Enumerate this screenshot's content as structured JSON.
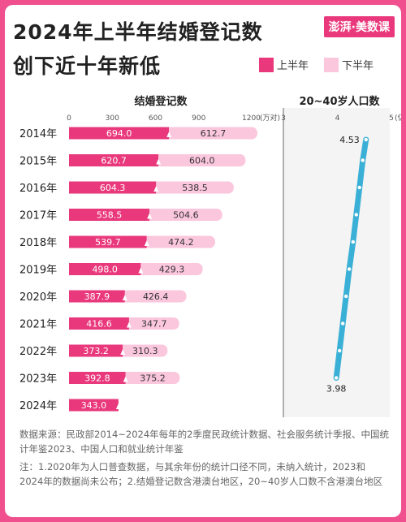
{
  "header": {
    "title_line1": "2024年上半年结婚登记数",
    "title_line2": "创下近十年新低",
    "brand": "澎湃·美数课"
  },
  "colors": {
    "h1": "#e9397c",
    "h2": "#fbc7dd",
    "line": "#3bb0d6",
    "background": "#f0508e"
  },
  "chart_data": [
    {
      "type": "bar",
      "orientation": "horizontal",
      "stacked": true,
      "title": "结婚登记数",
      "unit": "(万对)",
      "categories": [
        "2014年",
        "2015年",
        "2016年",
        "2017年",
        "2018年",
        "2019年",
        "2020年",
        "2021年",
        "2022年",
        "2023年",
        "2024年"
      ],
      "series": [
        {
          "name": "上半年",
          "values": [
            694.0,
            620.7,
            604.3,
            558.5,
            539.7,
            498.0,
            387.9,
            416.6,
            373.2,
            392.8,
            343.0
          ]
        },
        {
          "name": "下半年",
          "values": [
            612.7,
            604.0,
            538.5,
            504.6,
            474.2,
            429.3,
            426.4,
            347.7,
            310.3,
            375.2,
            null
          ]
        }
      ],
      "value_labels": {
        "h1": [
          "694.0",
          "620.7",
          "604.3",
          "558.5",
          "539.7",
          "498.0",
          "387.9",
          "416.6",
          "373.2",
          "392.8",
          "343.0"
        ],
        "h2": [
          "612.7",
          "604.0",
          "538.5",
          "504.6",
          "474.2",
          "429.3",
          "426.4",
          "347.7",
          "310.3",
          "375.2",
          ""
        ]
      },
      "xticks": [
        0,
        300,
        600,
        900,
        1200
      ],
      "xtick_labels": [
        "0",
        "300",
        "600",
        "900",
        "1200"
      ],
      "xlim": [
        0,
        1200
      ],
      "legend": "top-right"
    },
    {
      "type": "line",
      "title": "20~40岁人口数",
      "unit": "(亿人)",
      "x": [
        "2014年",
        "2015年",
        "2016年",
        "2017年",
        "2018年",
        "2019年",
        "2020年",
        "2021年",
        "2022年",
        "2023年"
      ],
      "y": [
        4.53,
        4.47,
        4.41,
        4.35,
        4.29,
        4.22,
        4.16,
        4.1,
        4.04,
        3.98
      ],
      "endpoint_labels": [
        "4.53",
        "3.98"
      ],
      "xticks": [
        3,
        4,
        5
      ],
      "xtick_labels": [
        "3",
        "4",
        "5"
      ],
      "xlim": [
        3,
        5
      ]
    }
  ],
  "notes": {
    "source": "数据来源：民政部2014~2024年每年的2季度民政统计数据、社会服务统计季报、中国统计年鉴2023、中国人口和就业统计年鉴",
    "note": "注：1.2020年为人口普查数据，与其余年份的统计口径不同，未纳入统计，2023和2024年的数据尚未公布；2.结婚登记数含港澳台地区，20~40岁人口数不含港澳台地区"
  }
}
